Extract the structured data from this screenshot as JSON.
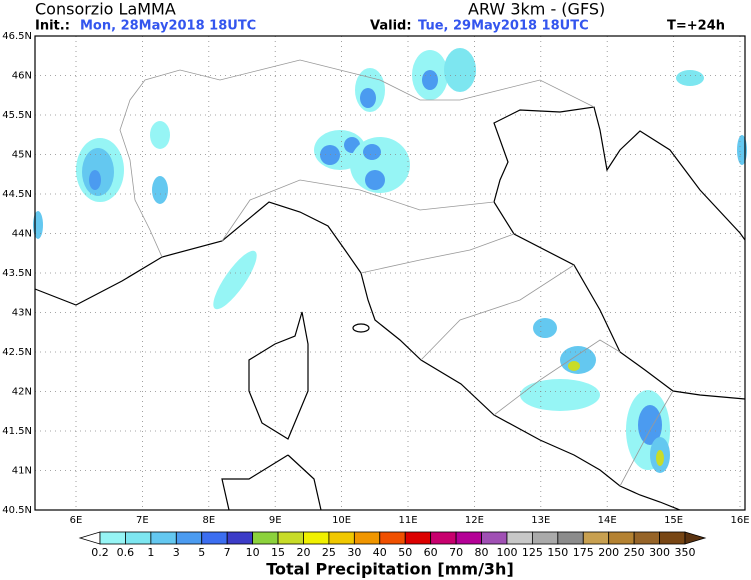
{
  "header": {
    "title": "Consorzio LaMMA",
    "model": "ARW 3km - (GFS)",
    "init_label": "Init.:",
    "init": "Mon, 28May2018 18UTC",
    "valid_label": "Valid:",
    "valid": "Tue, 29May2018 18UTC",
    "lead": "T=+24h"
  },
  "axes": {
    "lat_labels": [
      "46.5N",
      "46N",
      "45.5N",
      "45N",
      "44.5N",
      "44N",
      "43.5N",
      "43N",
      "42.5N",
      "42N",
      "41.5N",
      "41N",
      "40.5N"
    ],
    "lon_labels": [
      "6E",
      "7E",
      "8E",
      "9E",
      "10E",
      "11E",
      "12E",
      "13E",
      "14E",
      "15E",
      "16E"
    ]
  },
  "colorbar": {
    "title": "Total Precipitation [mm/3h]",
    "labels": [
      "0.2",
      "0.6",
      "1",
      "3",
      "5",
      "7",
      "10",
      "15",
      "20",
      "25",
      "30",
      "40",
      "50",
      "60",
      "70",
      "80",
      "100",
      "125",
      "150",
      "175",
      "200",
      "250",
      "300",
      "350"
    ],
    "colors": [
      "#ffffff",
      "#96f5f5",
      "#7de6f0",
      "#64c8f0",
      "#4b9bf0",
      "#3c6ef0",
      "#3c3cc8",
      "#8cd23c",
      "#c8dc28",
      "#f0f000",
      "#f0c800",
      "#f09600",
      "#f05000",
      "#dc0000",
      "#c8006e",
      "#b40096",
      "#a050b4",
      "#c8c8c8",
      "#aaaaaa",
      "#8c8c8c",
      "#c8a050",
      "#b48232",
      "#966428",
      "#784614",
      "#5a3210"
    ]
  }
}
